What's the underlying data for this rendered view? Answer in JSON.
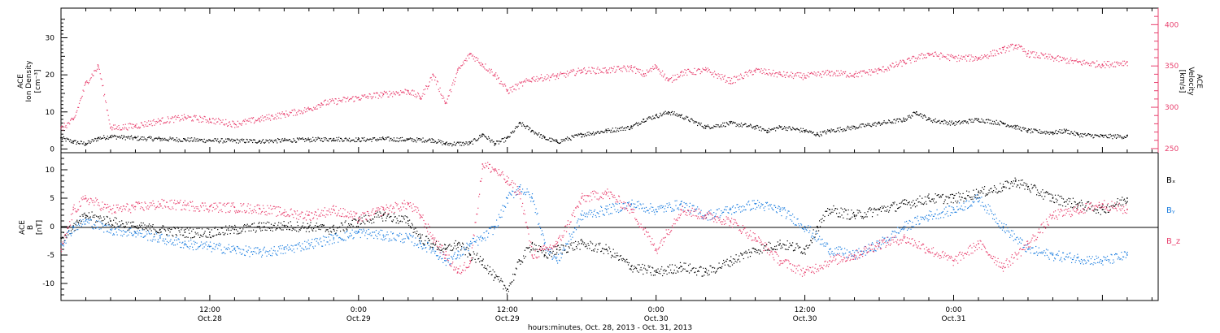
{
  "chart_data": [
    {
      "type": "scatter",
      "panel": "plasma",
      "ylabel_left": [
        "ACE",
        "Ion Density",
        "[cm⁻³]"
      ],
      "ylabel_right": [
        "ACE",
        "Velocity",
        "[km/s]"
      ],
      "ylim_left": [
        -1,
        38
      ],
      "ylim_right": [
        245,
        420
      ],
      "left_ticks": [
        "0",
        "10",
        "20",
        "30"
      ],
      "right_ticks": [
        "250",
        "300",
        "350",
        "400"
      ],
      "series": [
        {
          "axis": "left",
          "color": "#000000",
          "points": [
            [
              0,
              3
            ],
            [
              1,
              2
            ],
            [
              2,
              1.5
            ],
            [
              3,
              3
            ],
            [
              4,
              3.5
            ],
            [
              6,
              3
            ],
            [
              8,
              2.8
            ],
            [
              10,
              2.6
            ],
            [
              12,
              2.4
            ],
            [
              14,
              2.3
            ],
            [
              16,
              2.2
            ],
            [
              18,
              2.4
            ],
            [
              20,
              2.6
            ],
            [
              22,
              2.8
            ],
            [
              24,
              2.6
            ],
            [
              26,
              2.8
            ],
            [
              28,
              2.6
            ],
            [
              30,
              2.5
            ],
            [
              31,
              1.5
            ],
            [
              33,
              1.6
            ],
            [
              34,
              4
            ],
            [
              35,
              1.5
            ],
            [
              36,
              3
            ],
            [
              37,
              7
            ],
            [
              38,
              5
            ],
            [
              39,
              3
            ],
            [
              40,
              2
            ],
            [
              42,
              4
            ],
            [
              44,
              5
            ],
            [
              46,
              6
            ],
            [
              47,
              8
            ],
            [
              48,
              9
            ],
            [
              49,
              10
            ],
            [
              50,
              9
            ],
            [
              52,
              6
            ],
            [
              54,
              7
            ],
            [
              56,
              6
            ],
            [
              57,
              5
            ],
            [
              58,
              6
            ],
            [
              60,
              5
            ],
            [
              61,
              4
            ],
            [
              62,
              5
            ],
            [
              64,
              6
            ],
            [
              66,
              7
            ],
            [
              68,
              8
            ],
            [
              69,
              10
            ],
            [
              70,
              8
            ],
            [
              72,
              7
            ],
            [
              74,
              8
            ],
            [
              76,
              7
            ],
            [
              77,
              6
            ],
            [
              78,
              5
            ],
            [
              80,
              4.5
            ],
            [
              81,
              5
            ],
            [
              82,
              4
            ],
            [
              84,
              3.5
            ],
            [
              86,
              3.5
            ]
          ]
        },
        {
          "axis": "right",
          "color": "#e8406e",
          "points": [
            [
              0,
              275
            ],
            [
              1,
              285
            ],
            [
              2,
              330
            ],
            [
              3,
              350
            ],
            [
              4,
              275
            ],
            [
              6,
              278
            ],
            [
              8,
              284
            ],
            [
              10,
              288
            ],
            [
              12,
              285
            ],
            [
              14,
              280
            ],
            [
              16,
              286
            ],
            [
              18,
              292
            ],
            [
              20,
              298
            ],
            [
              21,
              305
            ],
            [
              24,
              312
            ],
            [
              26,
              316
            ],
            [
              28,
              320
            ],
            [
              29,
              312
            ],
            [
              30,
              340
            ],
            [
              31,
              305
            ],
            [
              32,
              345
            ],
            [
              33,
              365
            ],
            [
              34,
              352
            ],
            [
              35,
              340
            ],
            [
              36,
              320
            ],
            [
              38,
              335
            ],
            [
              40,
              338
            ],
            [
              42,
              345
            ],
            [
              44,
              345
            ],
            [
              46,
              348
            ],
            [
              47,
              340
            ],
            [
              48,
              350
            ],
            [
              49,
              332
            ],
            [
              50,
              342
            ],
            [
              52,
              345
            ],
            [
              54,
              332
            ],
            [
              56,
              345
            ],
            [
              58,
              340
            ],
            [
              60,
              338
            ],
            [
              62,
              342
            ],
            [
              64,
              340
            ],
            [
              66,
              345
            ],
            [
              68,
              355
            ],
            [
              70,
              365
            ],
            [
              72,
              360
            ],
            [
              74,
              360
            ],
            [
              76,
              370
            ],
            [
              77,
              375
            ],
            [
              78,
              365
            ],
            [
              80,
              360
            ],
            [
              82,
              355
            ],
            [
              84,
              352
            ],
            [
              86,
              355
            ]
          ]
        }
      ]
    },
    {
      "type": "scatter",
      "panel": "magnetic-field",
      "ylabel": [
        "ACE",
        "B",
        "[nT]"
      ],
      "ylim": [
        -13,
        13
      ],
      "ticks": [
        "-10",
        "-5",
        "0",
        "5",
        "10"
      ],
      "legend": [
        {
          "label": "Bₓ",
          "color": "#000000"
        },
        {
          "label": "Bᵧ",
          "color": "#1e7fe0"
        },
        {
          "label": "B_z",
          "color": "#e8406e"
        }
      ],
      "series": [
        {
          "name": "Bₓ",
          "color": "#000000",
          "points": [
            [
              0,
              -2
            ],
            [
              1,
              0
            ],
            [
              2,
              2
            ],
            [
              4,
              1
            ],
            [
              6,
              0
            ],
            [
              8,
              -0.5
            ],
            [
              10,
              -1
            ],
            [
              12,
              -1
            ],
            [
              14,
              -0.5
            ],
            [
              16,
              0
            ],
            [
              18,
              0.2
            ],
            [
              20,
              0
            ],
            [
              22,
              -0.5
            ],
            [
              24,
              1
            ],
            [
              26,
              2
            ],
            [
              28,
              1
            ],
            [
              29,
              -2
            ],
            [
              30,
              -3
            ],
            [
              31,
              -4
            ],
            [
              32,
              -3
            ],
            [
              33,
              -5
            ],
            [
              34,
              -6
            ],
            [
              35,
              -9
            ],
            [
              36,
              -11
            ],
            [
              37,
              -6
            ],
            [
              38,
              -3
            ],
            [
              39,
              -5
            ],
            [
              40,
              -4
            ],
            [
              42,
              -3
            ],
            [
              44,
              -4
            ],
            [
              46,
              -7
            ],
            [
              48,
              -8
            ],
            [
              50,
              -7
            ],
            [
              52,
              -8
            ],
            [
              54,
              -6
            ],
            [
              56,
              -4
            ],
            [
              58,
              -3
            ],
            [
              60,
              -4
            ],
            [
              61,
              0
            ],
            [
              62,
              3
            ],
            [
              64,
              2
            ],
            [
              66,
              3
            ],
            [
              68,
              4
            ],
            [
              70,
              5
            ],
            [
              72,
              5
            ],
            [
              74,
              6
            ],
            [
              76,
              7
            ],
            [
              77,
              8
            ],
            [
              78,
              7
            ],
            [
              80,
              5
            ],
            [
              82,
              4
            ],
            [
              84,
              3
            ],
            [
              86,
              5
            ]
          ]
        },
        {
          "name": "Bᵧ",
          "color": "#1e7fe0",
          "points": [
            [
              0,
              -3
            ],
            [
              1,
              0
            ],
            [
              2,
              1
            ],
            [
              4,
              -0.5
            ],
            [
              6,
              -1
            ],
            [
              8,
              -2
            ],
            [
              10,
              -3
            ],
            [
              12,
              -3.5
            ],
            [
              14,
              -4
            ],
            [
              16,
              -4.5
            ],
            [
              18,
              -4
            ],
            [
              20,
              -3
            ],
            [
              22,
              -2
            ],
            [
              24,
              -1
            ],
            [
              26,
              -1.5
            ],
            [
              28,
              -2
            ],
            [
              29,
              -3
            ],
            [
              30,
              -4
            ],
            [
              31,
              -6
            ],
            [
              32,
              -5
            ],
            [
              33,
              -3
            ],
            [
              34,
              -2
            ],
            [
              35,
              0
            ],
            [
              36,
              5
            ],
            [
              37,
              7
            ],
            [
              38,
              5
            ],
            [
              39,
              -3
            ],
            [
              40,
              -6
            ],
            [
              42,
              2
            ],
            [
              44,
              3
            ],
            [
              46,
              4
            ],
            [
              48,
              3
            ],
            [
              50,
              4
            ],
            [
              52,
              2
            ],
            [
              54,
              3
            ],
            [
              56,
              4
            ],
            [
              58,
              3
            ],
            [
              60,
              0
            ],
            [
              62,
              -4
            ],
            [
              64,
              -5
            ],
            [
              66,
              -3
            ],
            [
              68,
              0
            ],
            [
              70,
              2
            ],
            [
              72,
              3
            ],
            [
              74,
              5
            ],
            [
              76,
              0
            ],
            [
              78,
              -4
            ],
            [
              80,
              -5
            ],
            [
              82,
              -5.5
            ],
            [
              84,
              -6
            ],
            [
              86,
              -5
            ]
          ]
        },
        {
          "name": "B_z",
          "color": "#e8406e",
          "points": [
            [
              0,
              -4
            ],
            [
              1,
              3
            ],
            [
              2,
              5
            ],
            [
              4,
              3
            ],
            [
              6,
              3.5
            ],
            [
              8,
              4
            ],
            [
              10,
              3.8
            ],
            [
              12,
              3.5
            ],
            [
              14,
              3.4
            ],
            [
              16,
              3.2
            ],
            [
              18,
              2.5
            ],
            [
              20,
              2
            ],
            [
              22,
              3
            ],
            [
              24,
              1.5
            ],
            [
              26,
              3
            ],
            [
              28,
              4
            ],
            [
              29,
              2
            ],
            [
              30,
              -2
            ],
            [
              31,
              -5
            ],
            [
              32,
              -8
            ],
            [
              33,
              -6
            ],
            [
              34,
              11
            ],
            [
              35,
              10
            ],
            [
              36,
              8
            ],
            [
              37,
              6
            ],
            [
              38,
              -5
            ],
            [
              39,
              -4
            ],
            [
              40,
              -3
            ],
            [
              42,
              5
            ],
            [
              44,
              6
            ],
            [
              46,
              3
            ],
            [
              48,
              -4
            ],
            [
              50,
              3
            ],
            [
              52,
              2
            ],
            [
              54,
              1
            ],
            [
              56,
              -2
            ],
            [
              58,
              -6
            ],
            [
              60,
              -8
            ],
            [
              62,
              -6
            ],
            [
              64,
              -5
            ],
            [
              66,
              -3
            ],
            [
              68,
              -2
            ],
            [
              70,
              -4
            ],
            [
              72,
              -6
            ],
            [
              74,
              -3
            ],
            [
              76,
              -7
            ],
            [
              78,
              -3
            ],
            [
              80,
              2
            ],
            [
              82,
              3
            ],
            [
              84,
              4
            ],
            [
              86,
              3
            ]
          ]
        }
      ]
    }
  ],
  "x_axis": {
    "range_hours": [
      0,
      88.5
    ],
    "ticks": [
      {
        "hour": 12,
        "label": "12:00",
        "sub": "Oct.28"
      },
      {
        "hour": 24,
        "label": "0:00",
        "sub": "Oct.29"
      },
      {
        "hour": 36,
        "label": "12:00",
        "sub": "Oct.29"
      },
      {
        "hour": 48,
        "label": "0:00",
        "sub": "Oct.30"
      },
      {
        "hour": 60,
        "label": "12:00",
        "sub": "Oct.30"
      },
      {
        "hour": 72,
        "label": "0:00",
        "sub": "Oct.31"
      }
    ],
    "xlabel": "hours:minutes, Oct. 28, 2013 - Oct. 31, 2013"
  }
}
